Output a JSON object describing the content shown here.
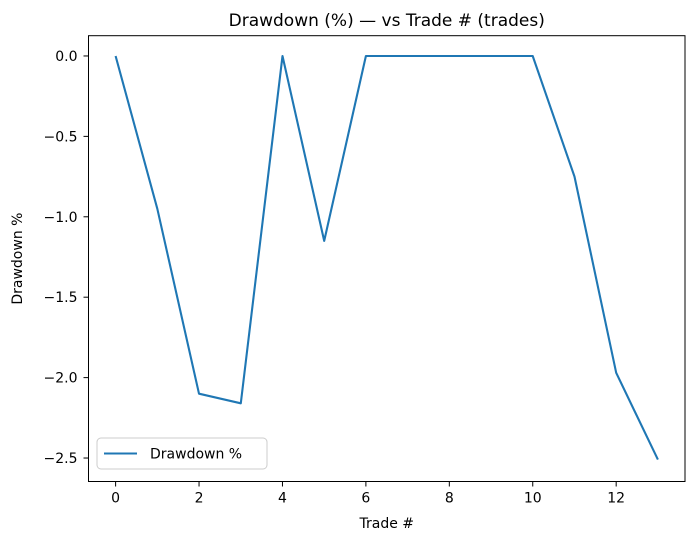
{
  "figure": {
    "background": "#ffffff"
  },
  "chart_data": {
    "type": "line",
    "title": "Drawdown (%) — vs Trade # (trades)",
    "xlabel": "Trade #",
    "ylabel": "Drawdown %",
    "x": [
      0,
      1,
      2,
      3,
      4,
      5,
      6,
      7,
      8,
      9,
      10,
      11,
      12,
      13
    ],
    "series": [
      {
        "name": "Drawdown %",
        "color": "#1f77b4",
        "values": [
          0.0,
          -0.95,
          -2.1,
          -2.16,
          0.0,
          -1.15,
          0.0,
          0.0,
          0.0,
          0.0,
          0.0,
          -0.75,
          -1.97,
          -2.51
        ]
      }
    ],
    "xticks": [
      0,
      2,
      4,
      6,
      8,
      10,
      12
    ],
    "yticks": [
      0.0,
      -0.5,
      -1.0,
      -1.5,
      -2.0,
      -2.5
    ],
    "xlim": [
      -0.65,
      13.65
    ],
    "ylim": [
      -2.646,
      0.126
    ],
    "grid": false,
    "legend": {
      "location": "lower left",
      "label": "Drawdown %"
    },
    "axis_color": "#000000",
    "spine_color": "#000000",
    "legend_border_color": "#cccccc"
  }
}
